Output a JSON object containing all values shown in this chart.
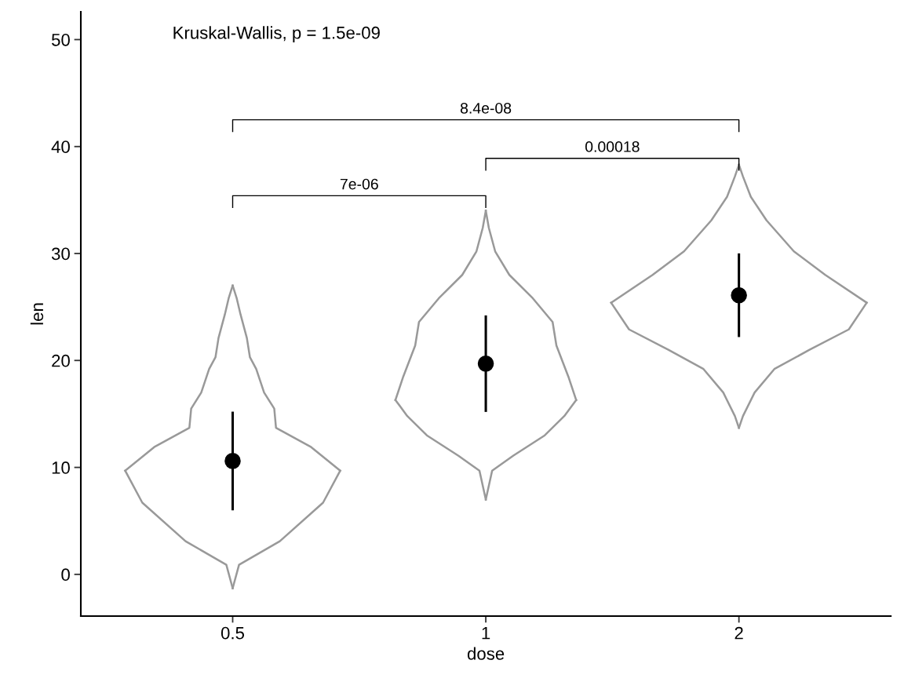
{
  "chart_data": {
    "type": "scatter",
    "xlabel": "dose",
    "ylabel": "len",
    "log": "x",
    "xlim": [
      0.3299,
      3.0314
    ],
    "xticks": [
      0.5,
      1,
      2
    ],
    "ylim": [
      -3.9,
      52.6
    ],
    "yticks": [
      0,
      10,
      20,
      30,
      40,
      50
    ],
    "grid": false,
    "legend": false,
    "annotations": [
      "Kruskal-Wallis, p = 1.5e-09",
      "7e-06",
      "0.00018",
      "8.4e-08"
    ],
    "series": [
      {
        "type": "line",
        "color": "#999999",
        "line_style": "solid",
        "marker": "none",
        "x": [
          0.5,
          0.5088,
          0.5689,
          0.6404,
          0.6712
        ],
        "values": [
          -1.3,
          0.9,
          3.1,
          6.7,
          9.7
        ]
      },
      {
        "type": "line",
        "color": "#999999",
        "line_style": "solid",
        "marker": "none",
        "x": [
          0.5,
          0.5056,
          0.5109,
          0.5198,
          0.5242,
          0.5333,
          0.5449,
          0.5603,
          0.563,
          0.6199,
          0.6712
        ],
        "values": [
          27,
          25.8,
          24.3,
          22.1,
          20.3,
          19.2,
          17,
          15.5,
          13.7,
          11.9,
          9.7
        ]
      },
      {
        "type": "line",
        "color": "#999999",
        "line_style": "solid",
        "marker": "none",
        "x": [
          0.3725,
          0.4033,
          0.4441,
          0.4463,
          0.4588,
          0.4688,
          0.477,
          0.481,
          0.4894,
          0.4945,
          0.5
        ],
        "values": [
          9.7,
          11.9,
          13.7,
          15.5,
          17,
          19.2,
          20.3,
          22.1,
          24.3,
          25.8,
          27
        ]
      },
      {
        "type": "line",
        "color": "#999999",
        "line_style": "solid",
        "marker": "none",
        "x": [
          0.3725,
          0.3904,
          0.4395,
          0.4914,
          0.5
        ],
        "values": [
          9.7,
          6.7,
          3.1,
          0.9,
          -1.3
        ]
      },
      {
        "type": "line",
        "color": "#999999",
        "line_style": "solid",
        "marker": "none",
        "x": [
          1,
          1.0175,
          1.0785,
          1.1752,
          1.2397,
          1.2808
        ],
        "values": [
          7.0,
          9.7,
          11.1,
          13,
          14.8,
          16.3
        ]
      },
      {
        "type": "line",
        "color": "#999999",
        "line_style": "solid",
        "marker": "none",
        "x": [
          1,
          1.0083,
          1.026,
          1.0666,
          1.1377,
          1.2007,
          1.2133,
          1.2535,
          1.2808
        ],
        "values": [
          34,
          32.4,
          30.2,
          28,
          25.8,
          23.6,
          21.4,
          18.5,
          16.3
        ]
      },
      {
        "type": "line",
        "color": "#999999",
        "line_style": "solid",
        "marker": "none",
        "x": [
          0.7808,
          0.7978,
          0.8242,
          0.8328,
          0.879,
          0.9376,
          0.9747,
          0.9917,
          1
        ],
        "values": [
          16.3,
          18.5,
          21.4,
          23.6,
          25.8,
          28,
          30.2,
          32.4,
          34
        ]
      },
      {
        "type": "line",
        "color": "#999999",
        "line_style": "solid",
        "marker": "none",
        "x": [
          0.7808,
          0.8066,
          0.8509,
          0.9272,
          0.9828,
          1
        ],
        "values": [
          16.3,
          14.8,
          13,
          11.1,
          9.7,
          7.0
        ]
      },
      {
        "type": "line",
        "color": "#999999",
        "line_style": "solid",
        "marker": "none",
        "x": [
          2,
          2.0222,
          2.0878,
          2.2038,
          2.4266,
          2.702,
          2.838
        ],
        "values": [
          13.7,
          14.8,
          17,
          19.2,
          21,
          22.9,
          25.4
        ]
      },
      {
        "type": "line",
        "color": "#999999",
        "line_style": "solid",
        "marker": "none",
        "x": [
          2,
          2.0222,
          2.0662,
          2.157,
          2.3246,
          2.5332,
          2.838
        ],
        "values": [
          38.3,
          37.2,
          35.3,
          33.1,
          30.2,
          28,
          25.4
        ]
      },
      {
        "type": "line",
        "color": "#999999",
        "line_style": "solid",
        "marker": "none",
        "x": [
          1.4094,
          1.579,
          1.7208,
          1.8544,
          1.936,
          1.978,
          2
        ],
        "values": [
          25.4,
          28,
          30.2,
          33.1,
          35.3,
          37.2,
          38.3
        ]
      },
      {
        "type": "line",
        "color": "#999999",
        "line_style": "solid",
        "marker": "none",
        "x": [
          1.4094,
          1.4804,
          1.6484,
          1.815,
          1.916,
          1.978,
          2
        ],
        "values": [
          25.4,
          22.9,
          21,
          19.2,
          17,
          14.8,
          13.7
        ]
      },
      {
        "color": "#000000",
        "marker": "circle",
        "x": [
          0.5,
          1,
          2
        ],
        "values": [
          10.6,
          19.7,
          26.1
        ],
        "errors": [
          [
            6.1,
            15.1
          ],
          [
            15.3,
            24.1
          ],
          [
            22.3,
            29.9
          ]
        ]
      }
    ]
  }
}
